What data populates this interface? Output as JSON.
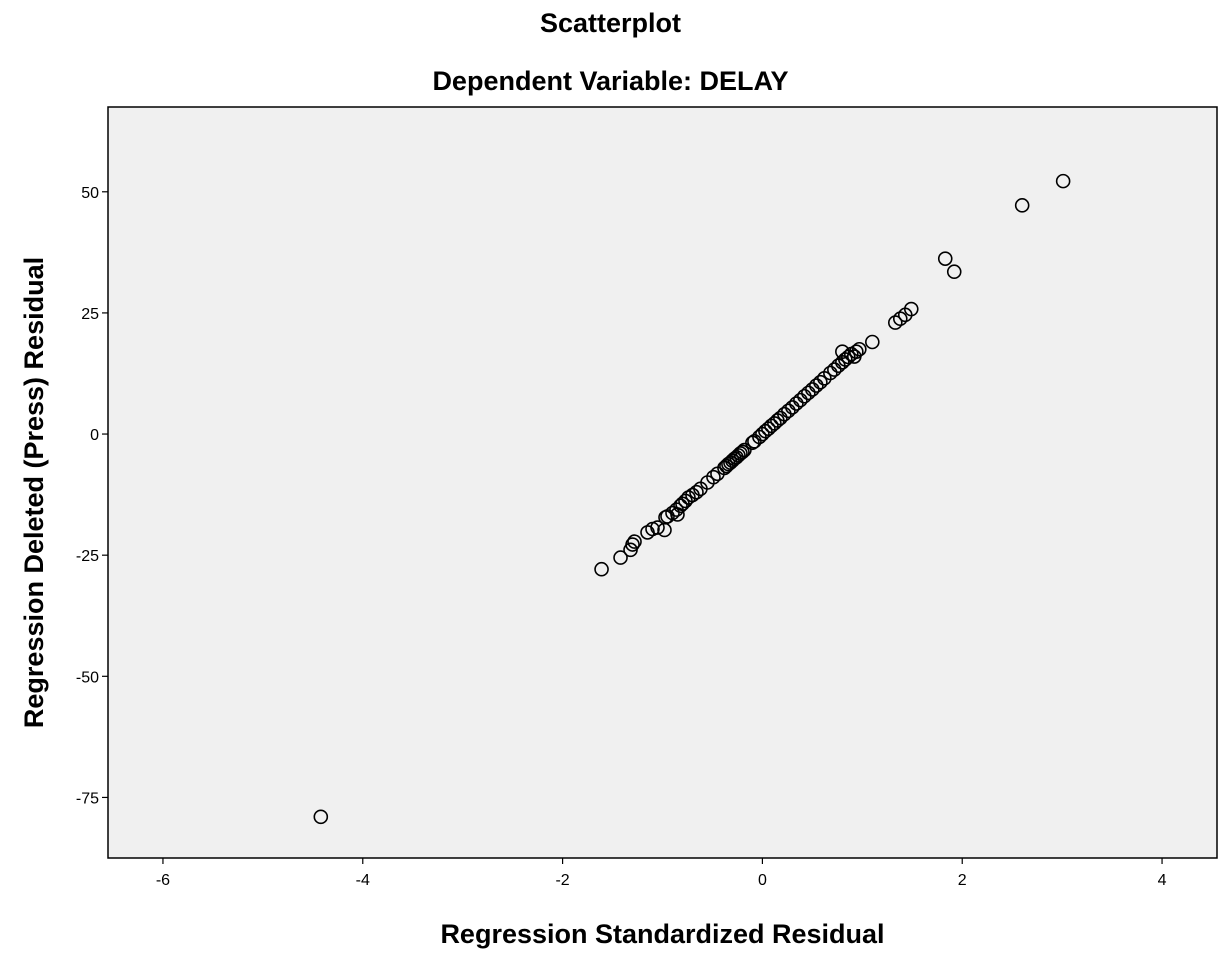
{
  "chart_data": {
    "type": "scatter",
    "title": "Scatterplot",
    "subtitle": "Dependent Variable: DELAY",
    "xlabel": "Regression Standardized Residual",
    "ylabel": "Regression Deleted (Press) Residual",
    "xlim": [
      -6.55,
      4.55
    ],
    "ylim": [
      -87.5,
      67.5
    ],
    "xticks": [
      -6,
      -4,
      -2,
      0,
      2,
      4
    ],
    "yticks": [
      -75,
      -50,
      -25,
      0,
      25,
      50
    ],
    "xtick_labels": [
      "-6",
      "-4",
      "-2",
      "0",
      "2",
      "4"
    ],
    "ytick_labels": [
      "-75",
      "-50",
      "-25",
      "0",
      "25",
      "50"
    ],
    "grid": false,
    "colors": {
      "plot_background": "#f0f0f0",
      "marker_stroke": "#000000",
      "axis": "#000000"
    },
    "points": [
      {
        "x": -4.42,
        "y": -79.0
      },
      {
        "x": -1.61,
        "y": -27.9
      },
      {
        "x": -1.42,
        "y": -25.5
      },
      {
        "x": -1.32,
        "y": -23.9
      },
      {
        "x": -1.3,
        "y": -22.8
      },
      {
        "x": -1.28,
        "y": -22.2
      },
      {
        "x": -1.15,
        "y": -20.3
      },
      {
        "x": -1.1,
        "y": -19.6
      },
      {
        "x": -1.05,
        "y": -19.3
      },
      {
        "x": -0.98,
        "y": -19.8
      },
      {
        "x": -0.97,
        "y": -17.2
      },
      {
        "x": -0.95,
        "y": -17.0
      },
      {
        "x": -0.9,
        "y": -16.3
      },
      {
        "x": -0.86,
        "y": -15.6
      },
      {
        "x": -0.85,
        "y": -16.6
      },
      {
        "x": -0.82,
        "y": -14.8
      },
      {
        "x": -0.8,
        "y": -14.4
      },
      {
        "x": -0.77,
        "y": -13.8
      },
      {
        "x": -0.74,
        "y": -13.1
      },
      {
        "x": -0.7,
        "y": -12.6
      },
      {
        "x": -0.66,
        "y": -12.0
      },
      {
        "x": -0.62,
        "y": -11.3
      },
      {
        "x": -0.55,
        "y": -10.0
      },
      {
        "x": -0.49,
        "y": -8.9
      },
      {
        "x": -0.45,
        "y": -8.2
      },
      {
        "x": -0.38,
        "y": -7.0
      },
      {
        "x": -0.36,
        "y": -6.6
      },
      {
        "x": -0.34,
        "y": -6.2
      },
      {
        "x": -0.32,
        "y": -5.9
      },
      {
        "x": -0.3,
        "y": -5.5
      },
      {
        "x": -0.28,
        "y": -5.1
      },
      {
        "x": -0.26,
        "y": -4.8
      },
      {
        "x": -0.24,
        "y": -4.4
      },
      {
        "x": -0.22,
        "y": -4.0
      },
      {
        "x": -0.2,
        "y": -3.7
      },
      {
        "x": -0.18,
        "y": -3.3
      },
      {
        "x": -0.1,
        "y": -1.8
      },
      {
        "x": -0.08,
        "y": -1.5
      },
      {
        "x": -0.03,
        "y": -0.6
      },
      {
        "x": 0.0,
        "y": 0.0
      },
      {
        "x": 0.03,
        "y": 0.6
      },
      {
        "x": 0.06,
        "y": 1.1
      },
      {
        "x": 0.09,
        "y": 1.7
      },
      {
        "x": 0.12,
        "y": 2.2
      },
      {
        "x": 0.15,
        "y": 2.8
      },
      {
        "x": 0.18,
        "y": 3.3
      },
      {
        "x": 0.22,
        "y": 4.1
      },
      {
        "x": 0.26,
        "y": 4.8
      },
      {
        "x": 0.3,
        "y": 5.5
      },
      {
        "x": 0.34,
        "y": 6.3
      },
      {
        "x": 0.38,
        "y": 7.0
      },
      {
        "x": 0.42,
        "y": 7.8
      },
      {
        "x": 0.46,
        "y": 8.5
      },
      {
        "x": 0.5,
        "y": 9.2
      },
      {
        "x": 0.54,
        "y": 10.0
      },
      {
        "x": 0.58,
        "y": 10.7
      },
      {
        "x": 0.62,
        "y": 11.5
      },
      {
        "x": 0.68,
        "y": 12.6
      },
      {
        "x": 0.72,
        "y": 13.3
      },
      {
        "x": 0.76,
        "y": 14.1
      },
      {
        "x": 0.8,
        "y": 14.8
      },
      {
        "x": 0.8,
        "y": 17.0
      },
      {
        "x": 0.83,
        "y": 15.4
      },
      {
        "x": 0.86,
        "y": 15.9
      },
      {
        "x": 0.89,
        "y": 16.5
      },
      {
        "x": 0.92,
        "y": 16.0
      },
      {
        "x": 0.94,
        "y": 17.0
      },
      {
        "x": 0.97,
        "y": 17.5
      },
      {
        "x": 1.1,
        "y": 19.0
      },
      {
        "x": 1.33,
        "y": 23.0
      },
      {
        "x": 1.38,
        "y": 23.8
      },
      {
        "x": 1.43,
        "y": 24.6
      },
      {
        "x": 1.49,
        "y": 25.8
      },
      {
        "x": 1.83,
        "y": 36.2
      },
      {
        "x": 1.92,
        "y": 33.5
      },
      {
        "x": 2.6,
        "y": 47.2
      },
      {
        "x": 3.01,
        "y": 52.2
      }
    ]
  }
}
